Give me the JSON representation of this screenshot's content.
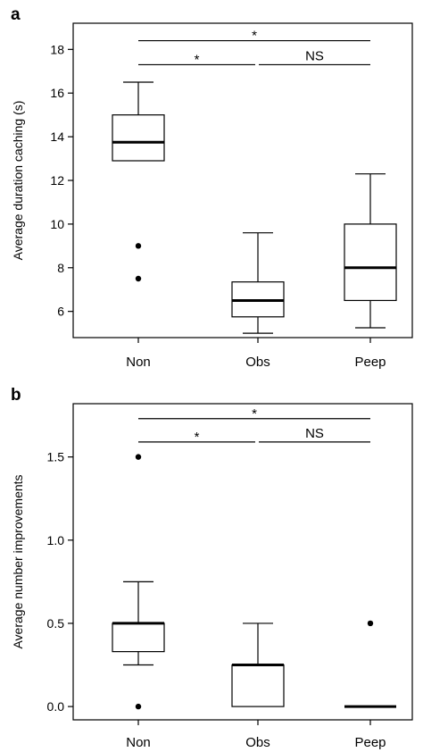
{
  "chart_data": [
    {
      "panel": "a",
      "type": "box",
      "categories": [
        "Non",
        "Obs",
        "Peep"
      ],
      "ylabel": "Average duration caching (s)",
      "ylim": [
        4.8,
        19.2
      ],
      "yticks": [
        "6",
        "8",
        "10",
        "12",
        "14",
        "16",
        "18"
      ],
      "boxes": [
        {
          "category": "Non",
          "whisker_low": 12.9,
          "q1": 12.9,
          "median": 13.75,
          "q3": 15.0,
          "whisker_high": 16.5,
          "outliers": [
            9.0,
            7.5
          ]
        },
        {
          "category": "Obs",
          "whisker_low": 5.0,
          "q1": 5.75,
          "median": 6.5,
          "q3": 7.35,
          "whisker_high": 9.6,
          "outliers": []
        },
        {
          "category": "Peep",
          "whisker_low": 5.25,
          "q1": 6.5,
          "median": 8.0,
          "q3": 10.0,
          "whisker_high": 12.3,
          "outliers": []
        }
      ],
      "significance": [
        {
          "from": "Non",
          "to": "Peep",
          "label": "*",
          "level": 18.4
        },
        {
          "from": "Non",
          "to": "Obs",
          "label": "*",
          "level": 17.3
        },
        {
          "from": "Obs",
          "to": "Peep",
          "label": "NS",
          "level": 17.3
        }
      ]
    },
    {
      "panel": "b",
      "type": "box",
      "categories": [
        "Non",
        "Obs",
        "Peep"
      ],
      "ylabel": "Average number improvements",
      "ylim": [
        -0.08,
        1.82
      ],
      "yticks": [
        "0.0",
        "0.5",
        "1.0",
        "1.5"
      ],
      "boxes": [
        {
          "category": "Non",
          "whisker_low": 0.25,
          "q1": 0.33,
          "median": 0.5,
          "q3": 0.5,
          "whisker_high": 0.75,
          "outliers": [
            1.5,
            0.0
          ]
        },
        {
          "category": "Obs",
          "whisker_low": 0.0,
          "q1": 0.0,
          "median": 0.25,
          "q3": 0.25,
          "whisker_high": 0.5,
          "outliers": []
        },
        {
          "category": "Peep",
          "whisker_low": 0.0,
          "q1": 0.0,
          "median": 0.0,
          "q3": 0.0,
          "whisker_high": 0.0,
          "outliers": [
            0.5
          ]
        }
      ],
      "significance": [
        {
          "from": "Non",
          "to": "Peep",
          "label": "*",
          "level": 1.73
        },
        {
          "from": "Non",
          "to": "Obs",
          "label": "*",
          "level": 1.59
        },
        {
          "from": "Obs",
          "to": "Peep",
          "label": "NS",
          "level": 1.59
        }
      ]
    }
  ]
}
